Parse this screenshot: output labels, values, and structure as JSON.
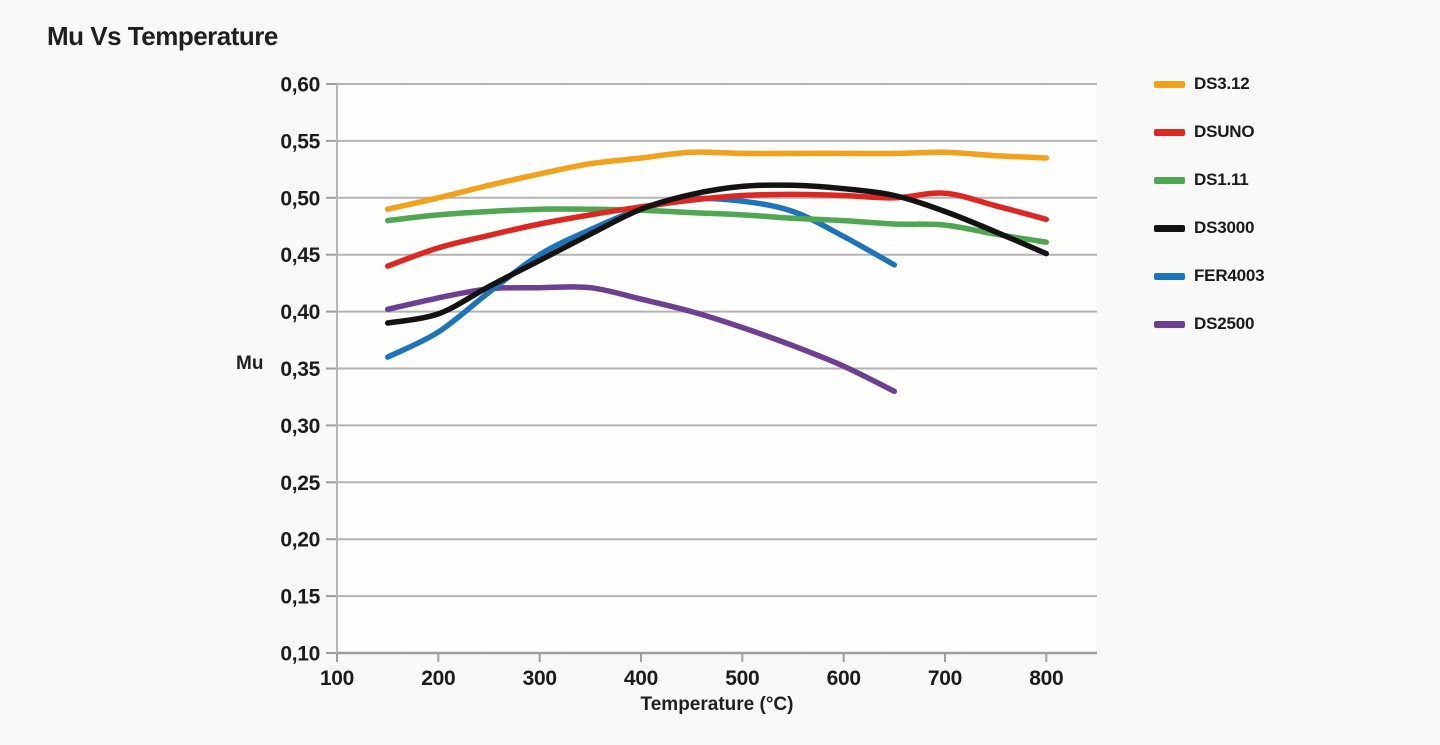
{
  "page": {
    "title": "Mu Vs Temperature"
  },
  "chart_data": {
    "type": "line",
    "title": "Mu Vs Temperature",
    "xlabel": "Temperature (°C)",
    "ylabel": "Mu",
    "xlim": [
      100,
      850
    ],
    "ylim": [
      0.1,
      0.6
    ],
    "xticks": [
      100,
      200,
      300,
      400,
      500,
      600,
      700,
      800
    ],
    "yticks": [
      0.6,
      0.55,
      0.5,
      0.45,
      0.4,
      0.35,
      0.3,
      0.25,
      0.2,
      0.15,
      0.1
    ],
    "ytick_labels": [
      "0,60",
      "0,55",
      "0,50",
      "0,45",
      "0,40",
      "0,35",
      "0,30",
      "0,25",
      "0,20",
      "0,15",
      "0,10"
    ],
    "decimal_separator": ",",
    "grid": "horizontal",
    "legend_position": "right",
    "colors": {
      "grid": "#b4b4b4",
      "axis": "#9e9e9e",
      "text": "#1c1c1c",
      "plot_background": "#fdfdfc"
    },
    "series": [
      {
        "name": "DS3.12",
        "color": "#F2A11B",
        "x": [
          150,
          200,
          250,
          300,
          350,
          400,
          450,
          500,
          550,
          600,
          650,
          700,
          750,
          800
        ],
        "values": [
          0.49,
          0.5,
          0.511,
          0.521,
          0.53,
          0.535,
          0.54,
          0.539,
          0.539,
          0.539,
          0.539,
          0.54,
          0.537,
          0.535
        ]
      },
      {
        "name": "DSUNO",
        "color": "#DC2823",
        "x": [
          150,
          200,
          250,
          300,
          350,
          400,
          450,
          500,
          550,
          600,
          650,
          700,
          750,
          800
        ],
        "values": [
          0.44,
          0.456,
          0.467,
          0.477,
          0.485,
          0.492,
          0.498,
          0.502,
          0.503,
          0.502,
          0.5,
          0.504,
          0.493,
          0.481
        ]
      },
      {
        "name": "DS1.11",
        "color": "#4FA653",
        "x": [
          150,
          200,
          250,
          300,
          350,
          400,
          450,
          500,
          550,
          600,
          650,
          700,
          750,
          800
        ],
        "values": [
          0.48,
          0.485,
          0.488,
          0.49,
          0.49,
          0.489,
          0.487,
          0.485,
          0.482,
          0.48,
          0.477,
          0.476,
          0.468,
          0.461
        ]
      },
      {
        "name": "DS3000",
        "color": "#131313",
        "x": [
          150,
          200,
          250,
          300,
          350,
          400,
          450,
          500,
          550,
          600,
          650,
          700,
          750,
          800
        ],
        "values": [
          0.39,
          0.398,
          0.422,
          0.445,
          0.468,
          0.49,
          0.503,
          0.51,
          0.511,
          0.508,
          0.502,
          0.488,
          0.47,
          0.451
        ]
      },
      {
        "name": "FER4003",
        "color": "#1E74BB",
        "x": [
          150,
          200,
          250,
          300,
          350,
          400,
          450,
          500,
          550,
          600,
          650
        ],
        "values": [
          0.36,
          0.382,
          0.417,
          0.45,
          0.472,
          0.49,
          0.499,
          0.497,
          0.488,
          0.466,
          0.441
        ]
      },
      {
        "name": "DS2500",
        "color": "#6E4092",
        "x": [
          150,
          200,
          250,
          300,
          350,
          400,
          450,
          500,
          550,
          600,
          650
        ],
        "values": [
          0.402,
          0.412,
          0.42,
          0.421,
          0.421,
          0.411,
          0.4,
          0.386,
          0.37,
          0.352,
          0.33
        ]
      }
    ]
  }
}
